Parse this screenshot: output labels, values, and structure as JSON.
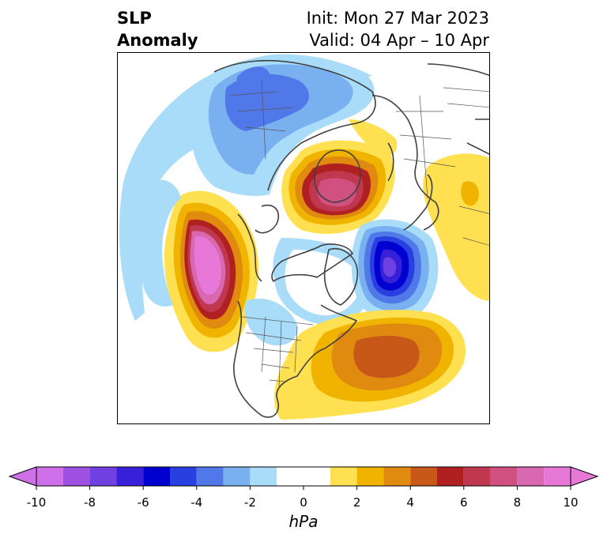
{
  "title": {
    "left_line1": "SLP",
    "left_line2": "Anomaly",
    "right_line1": "Init: Mon 27 Mar 2023",
    "right_line2": "Valid: 04 Apr – 10 Apr"
  },
  "colorbar": {
    "unit": "hPa",
    "ticks": [
      "-10",
      "-8",
      "-6",
      "-4",
      "-2",
      "0",
      "2",
      "4",
      "6",
      "8",
      "10"
    ],
    "bins": [
      {
        "from": -10,
        "to": -9,
        "color": "#d070e8"
      },
      {
        "from": -9,
        "to": -8,
        "color": "#a050e0"
      },
      {
        "from": -8,
        "to": -7,
        "color": "#7040e0"
      },
      {
        "from": -7,
        "to": -6,
        "color": "#3820d8"
      },
      {
        "from": -6,
        "to": -5,
        "color": "#0000d0"
      },
      {
        "from": -5,
        "to": -4,
        "color": "#2840e0"
      },
      {
        "from": -4,
        "to": -3,
        "color": "#5078e8"
      },
      {
        "from": -3,
        "to": -2,
        "color": "#78b0f0"
      },
      {
        "from": -2,
        "to": -1,
        "color": "#a8dcf8"
      },
      {
        "from": -1,
        "to": 1,
        "color": "#ffffff"
      },
      {
        "from": 1,
        "to": 2,
        "color": "#ffe050"
      },
      {
        "from": 2,
        "to": 3,
        "color": "#f0b400"
      },
      {
        "from": 3,
        "to": 4,
        "color": "#e08a10"
      },
      {
        "from": 4,
        "to": 5,
        "color": "#c85818"
      },
      {
        "from": 5,
        "to": 6,
        "color": "#b02020"
      },
      {
        "from": 6,
        "to": 7,
        "color": "#c03850"
      },
      {
        "from": 7,
        "to": 8,
        "color": "#d05080"
      },
      {
        "from": 8,
        "to": 9,
        "color": "#d868b0"
      },
      {
        "from": 9,
        "to": 10,
        "color": "#e878d8"
      }
    ],
    "extend_low_color": "#d070e8",
    "extend_high_color": "#e878d8"
  }
}
